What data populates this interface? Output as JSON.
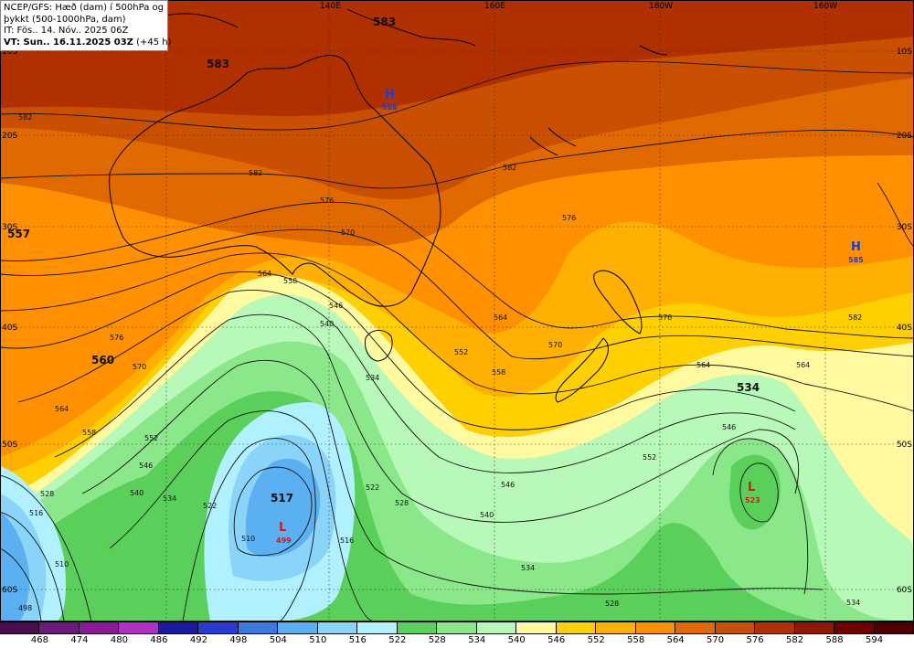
{
  "title": {
    "line1": "NCEP/GFS: Hæð (dam) í 500hPa og",
    "line2": "þykkt (500-1000hPa, dam)",
    "line3": "IT: Fös.. 14. Nóv.. 2025 06Z",
    "line4": "VT: Sun.. 16.11.2025 03Z",
    "line4b": "(+45 h)"
  },
  "longitude_labels": [
    "140E",
    "160E",
    "180W",
    "160W"
  ],
  "latitude_labels_right": [
    "10S",
    "20S",
    "30S",
    "40S",
    "50S",
    "60S"
  ],
  "latitude_labels_left": [
    "10S",
    "20S",
    "30S",
    "40S",
    "50S",
    "60S"
  ],
  "pressure_centers": [
    {
      "type": "H",
      "value": "588",
      "color": "#1e3cd0"
    },
    {
      "type": "H",
      "value": "585",
      "color": "#1e3cd0"
    },
    {
      "type": "L",
      "value": "499",
      "color": "#d01818"
    },
    {
      "type": "L",
      "value": "523",
      "color": "#d01818"
    }
  ],
  "field_labels": [
    "583",
    "583",
    "557",
    "560",
    "534",
    "517"
  ],
  "contour_labels": [
    "582",
    "582",
    "582",
    "582",
    "576",
    "576",
    "576",
    "576",
    "570",
    "570",
    "570",
    "564",
    "564",
    "564",
    "564",
    "558",
    "558",
    "558",
    "552",
    "552",
    "552",
    "546",
    "546",
    "546",
    "546",
    "540",
    "540",
    "540",
    "534",
    "534",
    "534",
    "534",
    "528",
    "528",
    "528",
    "522",
    "522",
    "516",
    "516",
    "510",
    "510",
    "498",
    "564"
  ],
  "colorbar": {
    "colors": [
      "#4a0e4e",
      "#6a1a7a",
      "#8a1a9a",
      "#b030c0",
      "#1a1aa0",
      "#2a3ad0",
      "#3a7ae0",
      "#5ab0f0",
      "#8ad4fa",
      "#b0f0ff",
      "#5ad05a",
      "#8ae88a",
      "#b8f8b8",
      "#fffaa0",
      "#ffd000",
      "#ffb000",
      "#ff9000",
      "#e06a00",
      "#c85000",
      "#b03000",
      "#901800",
      "#700000",
      "#500000"
    ],
    "labels": [
      "468",
      "474",
      "480",
      "486",
      "492",
      "498",
      "504",
      "510",
      "516",
      "522",
      "528",
      "534",
      "540",
      "546",
      "552",
      "558",
      "564",
      "570",
      "576",
      "582",
      "588",
      "594"
    ]
  }
}
